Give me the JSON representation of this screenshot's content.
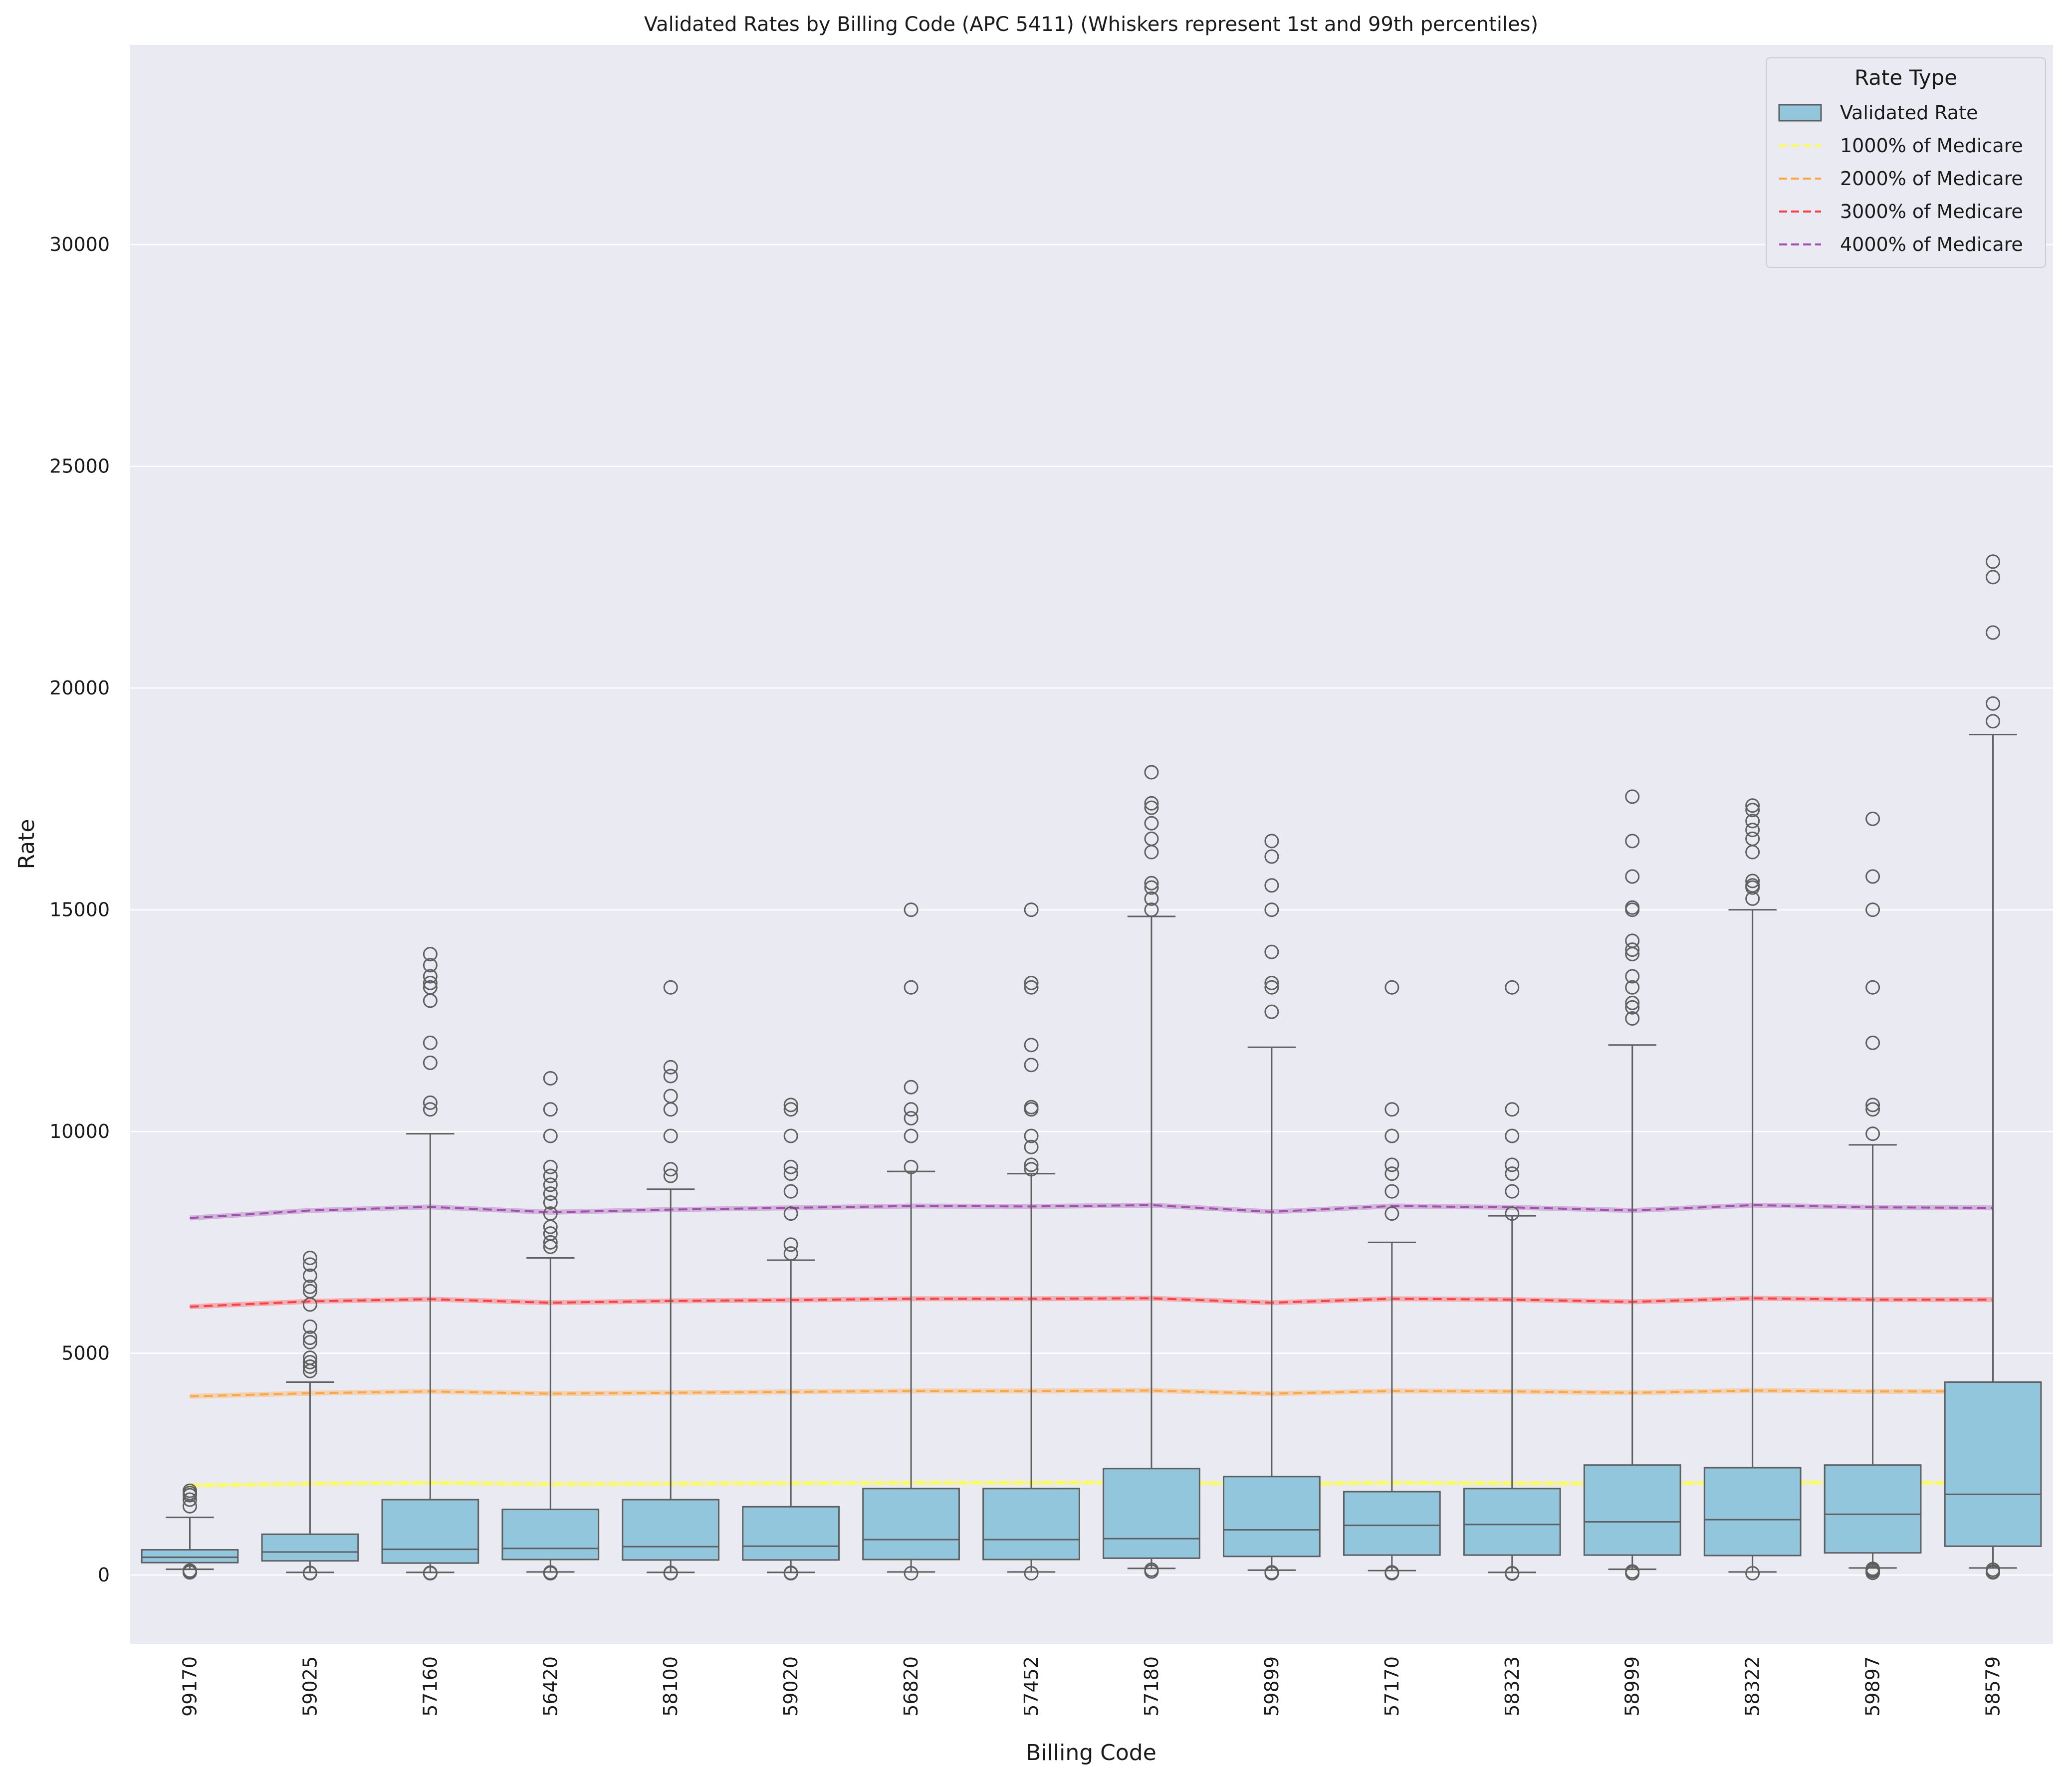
{
  "chart_data": {
    "type": "box",
    "title": "Validated Rates by Billing Code (APC 5411) (Whiskers represent 1st and 99th percentiles)",
    "xlabel": "Billing Code",
    "ylabel": "Rate",
    "ylim": [
      -1550,
      34500
    ],
    "yticks": [
      0,
      5000,
      10000,
      15000,
      20000,
      25000,
      30000
    ],
    "grid": true,
    "legend": {
      "title": "Rate Type",
      "placement": "top-right",
      "entries": [
        {
          "label": "Validated Rate",
          "kind": "box",
          "color": "#92c6dd"
        },
        {
          "label": "1000% of Medicare",
          "kind": "dashed",
          "color": "#ffff3f"
        },
        {
          "label": "2000% of Medicare",
          "kind": "dashed",
          "color": "#ffa640"
        },
        {
          "label": "3000% of Medicare",
          "kind": "dashed",
          "color": "#ff3f3f"
        },
        {
          "label": "4000% of Medicare",
          "kind": "dashed",
          "color": "#a24fb0"
        }
      ]
    },
    "colors": {
      "box_fill": "#92c6dd",
      "box_edge": "#5f5f5f",
      "background": "#eaeaf2",
      "grid": "#ffffff"
    },
    "categories": [
      "99170",
      "59025",
      "57160",
      "56420",
      "58100",
      "59020",
      "56820",
      "57452",
      "57180",
      "59899",
      "57170",
      "58323",
      "58999",
      "58322",
      "59897",
      "58579"
    ],
    "boxes": [
      {
        "code": "99170",
        "whisker_low": 130,
        "q1": 280,
        "median": 400,
        "q3": 570,
        "whisker_high": 1300,
        "outliers": [
          1550,
          1700,
          1800,
          1850,
          1900,
          60,
          80,
          100
        ]
      },
      {
        "code": "59025",
        "whisker_low": 60,
        "q1": 320,
        "median": 520,
        "q3": 920,
        "whisker_high": 4350,
        "outliers": [
          4600,
          4700,
          4800,
          4900,
          5250,
          5350,
          5600,
          6100,
          6400,
          6500,
          6750,
          7000,
          7150,
          40,
          50
        ]
      },
      {
        "code": "57160",
        "whisker_low": 60,
        "q1": 270,
        "median": 580,
        "q3": 1700,
        "whisker_high": 9950,
        "outliers": [
          10500,
          10650,
          11550,
          12000,
          12950,
          13250,
          13350,
          13500,
          13750,
          14000,
          40,
          50
        ]
      },
      {
        "code": "56420",
        "whisker_low": 70,
        "q1": 350,
        "median": 600,
        "q3": 1480,
        "whisker_high": 7150,
        "outliers": [
          7400,
          7500,
          7700,
          7850,
          8150,
          8400,
          8600,
          8800,
          9000,
          9200,
          9900,
          10500,
          11200,
          40,
          60
        ]
      },
      {
        "code": "58100",
        "whisker_low": 60,
        "q1": 340,
        "median": 640,
        "q3": 1700,
        "whisker_high": 8700,
        "outliers": [
          9000,
          9150,
          9900,
          10500,
          10800,
          11250,
          11450,
          13250,
          40,
          50
        ]
      },
      {
        "code": "59020",
        "whisker_low": 60,
        "q1": 340,
        "median": 650,
        "q3": 1540,
        "whisker_high": 7100,
        "outliers": [
          7250,
          7450,
          8150,
          8650,
          9050,
          9200,
          9900,
          10500,
          10600,
          40,
          50
        ]
      },
      {
        "code": "56820",
        "whisker_low": 70,
        "q1": 350,
        "median": 800,
        "q3": 1950,
        "whisker_high": 9100,
        "outliers": [
          9200,
          9900,
          10300,
          10500,
          11000,
          13250,
          15000,
          40
        ]
      },
      {
        "code": "57452",
        "whisker_low": 70,
        "q1": 350,
        "median": 800,
        "q3": 1950,
        "whisker_high": 9050,
        "outliers": [
          9150,
          9250,
          9650,
          9900,
          10500,
          10550,
          11500,
          11950,
          13250,
          13350,
          15000,
          40
        ]
      },
      {
        "code": "57180",
        "whisker_low": 150,
        "q1": 380,
        "median": 820,
        "q3": 2400,
        "whisker_high": 14850,
        "outliers": [
          15000,
          15250,
          15500,
          15600,
          16300,
          16600,
          16950,
          17300,
          17400,
          18100,
          80,
          120
        ]
      },
      {
        "code": "59899",
        "whisker_low": 110,
        "q1": 420,
        "median": 1020,
        "q3": 2220,
        "whisker_high": 11900,
        "outliers": [
          12700,
          13250,
          13350,
          14050,
          15000,
          15550,
          16200,
          16550,
          40,
          60
        ]
      },
      {
        "code": "57170",
        "whisker_low": 100,
        "q1": 450,
        "median": 1120,
        "q3": 1880,
        "whisker_high": 7500,
        "outliers": [
          8150,
          8650,
          9050,
          9250,
          9900,
          10500,
          13250,
          40,
          60
        ]
      },
      {
        "code": "58323",
        "whisker_low": 60,
        "q1": 450,
        "median": 1140,
        "q3": 1950,
        "whisker_high": 8100,
        "outliers": [
          8150,
          8650,
          9050,
          9250,
          9900,
          10500,
          13250,
          30,
          40
        ]
      },
      {
        "code": "58999",
        "whisker_low": 130,
        "q1": 450,
        "median": 1200,
        "q3": 2480,
        "whisker_high": 11950,
        "outliers": [
          12550,
          12800,
          12900,
          13250,
          13500,
          14000,
          14100,
          14300,
          15000,
          15050,
          15750,
          16550,
          17550,
          40,
          80
        ]
      },
      {
        "code": "58322",
        "whisker_low": 70,
        "q1": 440,
        "median": 1250,
        "q3": 2420,
        "whisker_high": 15000,
        "outliers": [
          15250,
          15500,
          15550,
          15650,
          16300,
          16600,
          16800,
          17000,
          17250,
          17350,
          40
        ]
      },
      {
        "code": "59897",
        "whisker_low": 160,
        "q1": 500,
        "median": 1370,
        "q3": 2480,
        "whisker_high": 9700,
        "outliers": [
          9950,
          10500,
          10600,
          12000,
          13250,
          15000,
          15750,
          17050,
          50,
          90,
          120,
          140
        ]
      },
      {
        "code": "58579",
        "whisker_low": 160,
        "q1": 650,
        "median": 1820,
        "q3": 4350,
        "whisker_high": 18950,
        "outliers": [
          19250,
          19650,
          21250,
          22500,
          22850,
          60,
          80,
          120
        ]
      }
    ],
    "series": [
      {
        "name": "1000% of Medicare",
        "color": "#ffff3f",
        "values": [
          2020,
          2060,
          2080,
          2050,
          2060,
          2070,
          2080,
          2080,
          2090,
          2050,
          2080,
          2070,
          2060,
          2090,
          2080,
          2080
        ]
      },
      {
        "name": "2000% of Medicare",
        "color": "#ffa640",
        "values": [
          4030,
          4100,
          4140,
          4090,
          4110,
          4130,
          4150,
          4150,
          4160,
          4090,
          4150,
          4140,
          4110,
          4160,
          4140,
          4140
        ]
      },
      {
        "name": "3000% of Medicare",
        "color": "#ff3f3f",
        "values": [
          6050,
          6170,
          6220,
          6140,
          6180,
          6200,
          6230,
          6230,
          6240,
          6140,
          6230,
          6210,
          6160,
          6240,
          6210,
          6210
        ]
      },
      {
        "name": "4000% of Medicare",
        "color": "#a24fb0",
        "values": [
          8050,
          8220,
          8300,
          8180,
          8240,
          8280,
          8320,
          8310,
          8340,
          8190,
          8320,
          8290,
          8220,
          8340,
          8290,
          8280
        ]
      }
    ]
  }
}
